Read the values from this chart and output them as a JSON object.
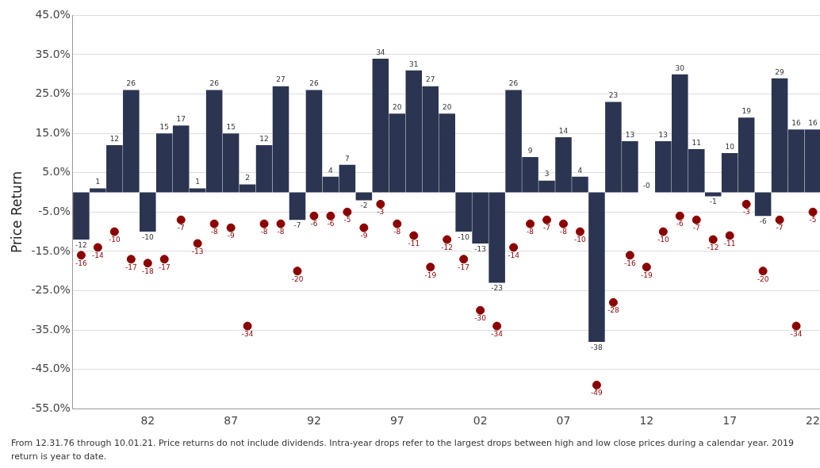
{
  "chart_data": {
    "type": "bar",
    "ylabel": "Price Return",
    "categories": [
      null,
      null,
      null,
      null,
      "82",
      null,
      null,
      null,
      null,
      "87",
      null,
      null,
      null,
      null,
      "92",
      null,
      null,
      null,
      null,
      "97",
      null,
      null,
      null,
      null,
      "02",
      null,
      null,
      null,
      null,
      "07",
      null,
      null,
      null,
      null,
      "12",
      null,
      null,
      null,
      null,
      "17",
      null,
      null,
      null,
      null,
      "22"
    ],
    "series": [
      {
        "color": "#2b3551",
        "values": [
          -12,
          1,
          12,
          26,
          -10,
          15,
          17,
          1,
          26,
          15,
          2,
          12,
          27,
          -7,
          26,
          4,
          7,
          -2,
          34,
          20,
          31,
          27,
          20,
          -10,
          -13,
          -23,
          26,
          9,
          3,
          14,
          4,
          -38,
          23,
          13,
          0,
          13,
          30,
          11,
          -1,
          10,
          19,
          -6,
          29,
          16,
          16
        ],
        "value_labels": [
          "-12",
          "1",
          "12",
          "26",
          "-10",
          "15",
          "17",
          "1",
          "26",
          "15",
          "2",
          "12",
          "27",
          "-7",
          "26",
          "4",
          "7",
          "-2",
          "34",
          "20",
          "31",
          "27",
          "20",
          "-10",
          "-13",
          "-23",
          "26",
          "9",
          "3",
          "14",
          "4",
          "-38",
          "23",
          "13",
          "-0",
          "13",
          "30",
          "11",
          "-1",
          "10",
          "19",
          "-6",
          "29",
          "16",
          "16"
        ]
      },
      {
        "type": "scatter",
        "color": "#8b0000",
        "marker": "circle",
        "values": [
          -16,
          -14,
          -10,
          -17,
          -18,
          -17,
          -7,
          -13,
          -8,
          -9,
          -34,
          -8,
          -8,
          -20,
          -6,
          -6,
          -5,
          -9,
          -3,
          -8,
          -11,
          -19,
          -12,
          -17,
          -30,
          -34,
          -14,
          -8,
          -7,
          -8,
          -10,
          -49,
          -28,
          -16,
          -19,
          -10,
          -6,
          -7,
          -12,
          -11,
          -3,
          -20,
          -7,
          -34,
          -5
        ],
        "value_labels": [
          "-16",
          "-14",
          "-10",
          "-17",
          "-18",
          "-17",
          "-7",
          "-13",
          "-8",
          "-9",
          "-34",
          "-8",
          "-8",
          "-20",
          "-6",
          "-6",
          "-5",
          "-9",
          "-3",
          "-8",
          "-11",
          "-19",
          "-12",
          "-17",
          "-30",
          "-34",
          "-14",
          "-8",
          "-7",
          "-8",
          "-10",
          "-49",
          "-28",
          "-16",
          "-19",
          "-10",
          "-6",
          "-7",
          "-12",
          "-11",
          "-3",
          "-20",
          "-7",
          "-34",
          "-5"
        ]
      }
    ],
    "ylim": [
      -55,
      45
    ],
    "yticks": [
      {
        "value": -55,
        "label": "-55.0%"
      },
      {
        "value": -45,
        "label": "-45.0%"
      },
      {
        "value": -35,
        "label": "-35.0%"
      },
      {
        "value": -25,
        "label": "-25.0%"
      },
      {
        "value": -15,
        "label": "-15.0%"
      },
      {
        "value": -5,
        "label": "-5.0%"
      },
      {
        "value": 5,
        "label": "5.0%"
      },
      {
        "value": 15,
        "label": "15.0%"
      },
      {
        "value": 25,
        "label": "25.0%"
      },
      {
        "value": 35,
        "label": "35.0%"
      },
      {
        "value": 45,
        "label": "45.0%"
      }
    ],
    "grid": "y",
    "legend": false,
    "annotations": [
      "From 12.31.76 through 10.01.21. Price returns do not include dividends. Intra-year drops refer to the largest drops between high and low close prices during a calendar year. 2019 return is year to date."
    ]
  }
}
